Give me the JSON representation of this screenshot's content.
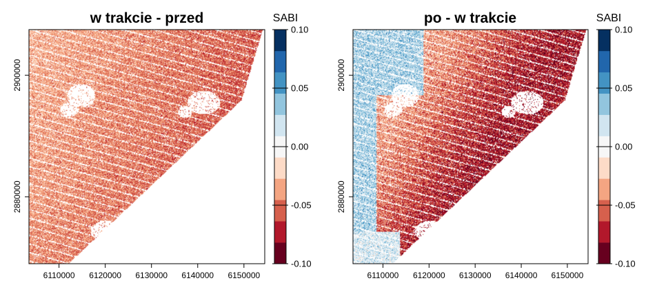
{
  "chart_data": [
    {
      "type": "heatmap",
      "title": "w trakcie - przed",
      "xlabel": "",
      "ylabel": "",
      "xlim": [
        6103500,
        6154500
      ],
      "ylim": [
        2869000,
        2907500
      ],
      "x_ticks": [
        6110000,
        6120000,
        6130000,
        6140000,
        6150000
      ],
      "x_tick_labels": [
        "6110000",
        "6120000",
        "6130000",
        "6140000",
        "6150000"
      ],
      "y_ticks": [
        2880000,
        2900000
      ],
      "y_tick_labels": [
        "2880000",
        "2900000"
      ],
      "field_tendency": "predominantly light negative values (-0.02 to -0.06), scattered near-zero and light positive speckle; stronger negatives toward the coastline on the right",
      "legend": {
        "title": "SABI",
        "min": -0.1,
        "max": 0.1,
        "tick_values": [
          0.1,
          0.05,
          0.0,
          -0.05,
          -0.1
        ],
        "tick_labels": [
          "0.10",
          "0.05",
          "0.00",
          "-0.05",
          "-0.10"
        ],
        "colors": [
          "#67001f",
          "#b2182b",
          "#d6604d",
          "#f4a582",
          "#fddbc7",
          "#f7f7f7",
          "#d1e5f0",
          "#92c5de",
          "#4393c3",
          "#2166ac",
          "#053061"
        ]
      }
    },
    {
      "type": "heatmap",
      "title": "po - w trakcie",
      "xlabel": "",
      "ylabel": "",
      "xlim": [
        6103500,
        6154500
      ],
      "ylim": [
        2869000,
        2907500
      ],
      "x_ticks": [
        6110000,
        6120000,
        6130000,
        6140000,
        6150000
      ],
      "x_tick_labels": [
        "6110000",
        "6120000",
        "6130000",
        "6140000",
        "6150000"
      ],
      "y_ticks": [
        2880000,
        2900000
      ],
      "y_tick_labels": [
        "2880000",
        "2900000"
      ],
      "field_tendency": "mixed: stronger negative values (-0.05 to -0.10) in the central diagonal band, light positive (0.02 to 0.06) patches along the left and upper-left edges",
      "legend": {
        "title": "SABI",
        "min": -0.1,
        "max": 0.1,
        "tick_values": [
          0.1,
          0.05,
          0.0,
          -0.05,
          -0.1
        ],
        "tick_labels": [
          "0.10",
          "0.05",
          "0.00",
          "-0.05",
          "-0.10"
        ],
        "colors": [
          "#67001f",
          "#b2182b",
          "#d6604d",
          "#f4a582",
          "#fddbc7",
          "#f7f7f7",
          "#d1e5f0",
          "#92c5de",
          "#4393c3",
          "#2166ac",
          "#053061"
        ]
      }
    }
  ]
}
